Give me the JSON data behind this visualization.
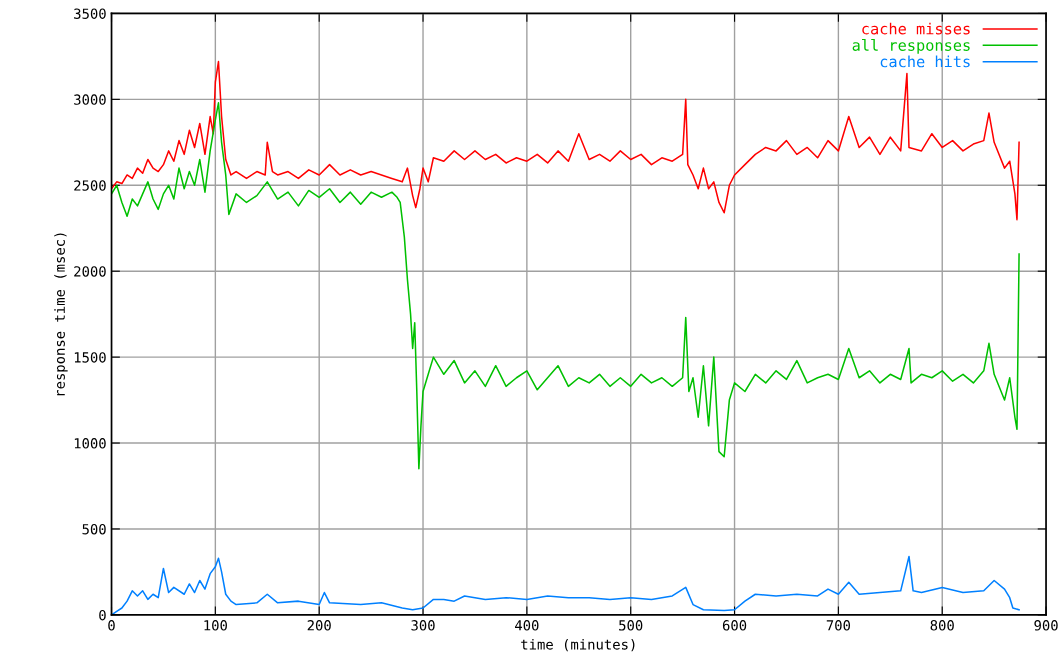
{
  "chart_data": {
    "type": "line",
    "xlabel": "time (minutes)",
    "ylabel": "response time (msec)",
    "xlim": [
      0,
      900
    ],
    "xticks": [
      0,
      100,
      200,
      300,
      400,
      500,
      600,
      700,
      800,
      900
    ],
    "ylim": [
      0,
      3500
    ],
    "yticks": [
      0,
      500,
      1000,
      1500,
      2000,
      2500,
      3000,
      3500
    ],
    "grid": true,
    "legend": "top right",
    "line_style": "solid",
    "marker": "none",
    "series": [
      {
        "name": "cache misses",
        "color": "#ff0000",
        "x": [
          0,
          5,
          10,
          15,
          20,
          25,
          30,
          35,
          40,
          45,
          50,
          55,
          60,
          65,
          70,
          75,
          80,
          85,
          90,
          95,
          98,
          100,
          103,
          106,
          110,
          115,
          120,
          130,
          140,
          148,
          150,
          155,
          160,
          170,
          180,
          190,
          200,
          210,
          220,
          230,
          240,
          250,
          260,
          270,
          280,
          285,
          290,
          293,
          297,
          300,
          305,
          310,
          320,
          330,
          340,
          350,
          360,
          370,
          380,
          390,
          400,
          410,
          420,
          430,
          440,
          450,
          460,
          470,
          480,
          490,
          500,
          510,
          520,
          530,
          540,
          550,
          553,
          555,
          560,
          565,
          570,
          575,
          580,
          585,
          590,
          595,
          600,
          610,
          620,
          630,
          640,
          650,
          660,
          670,
          680,
          690,
          700,
          710,
          720,
          730,
          740,
          750,
          760,
          766,
          768,
          780,
          790,
          800,
          810,
          820,
          830,
          840,
          845,
          850,
          860,
          865,
          870,
          872,
          874
        ],
        "values": [
          2480,
          2520,
          2510,
          2560,
          2540,
          2600,
          2570,
          2650,
          2600,
          2580,
          2620,
          2700,
          2640,
          2760,
          2680,
          2820,
          2720,
          2860,
          2680,
          2900,
          2800,
          3100,
          3220,
          2900,
          2650,
          2560,
          2580,
          2540,
          2580,
          2560,
          2750,
          2580,
          2560,
          2580,
          2540,
          2590,
          2560,
          2620,
          2560,
          2590,
          2560,
          2580,
          2560,
          2540,
          2520,
          2600,
          2440,
          2370,
          2480,
          2600,
          2520,
          2660,
          2640,
          2700,
          2650,
          2700,
          2650,
          2680,
          2630,
          2660,
          2640,
          2680,
          2630,
          2700,
          2640,
          2800,
          2650,
          2680,
          2640,
          2700,
          2650,
          2680,
          2620,
          2660,
          2640,
          2680,
          3000,
          2620,
          2560,
          2480,
          2600,
          2480,
          2520,
          2400,
          2340,
          2500,
          2560,
          2620,
          2680,
          2720,
          2700,
          2760,
          2680,
          2720,
          2660,
          2760,
          2700,
          2900,
          2720,
          2780,
          2680,
          2780,
          2700,
          3150,
          2720,
          2700,
          2800,
          2720,
          2760,
          2700,
          2740,
          2760,
          2920,
          2750,
          2600,
          2640,
          2450,
          2300,
          2750
        ]
      },
      {
        "name": "all responses",
        "color": "#00c000",
        "x": [
          0,
          5,
          10,
          15,
          20,
          25,
          30,
          35,
          40,
          45,
          50,
          55,
          60,
          65,
          70,
          75,
          80,
          85,
          90,
          95,
          100,
          103,
          106,
          110,
          113,
          120,
          130,
          140,
          150,
          160,
          170,
          180,
          190,
          200,
          210,
          220,
          230,
          240,
          250,
          260,
          270,
          275,
          278,
          282,
          285,
          288,
          290,
          292,
          294,
          296,
          298,
          300,
          305,
          310,
          320,
          330,
          340,
          350,
          360,
          370,
          380,
          390,
          400,
          410,
          420,
          430,
          440,
          450,
          460,
          470,
          480,
          490,
          500,
          510,
          520,
          530,
          540,
          550,
          553,
          556,
          560,
          565,
          570,
          575,
          580,
          585,
          590,
          595,
          600,
          610,
          620,
          630,
          640,
          650,
          660,
          670,
          680,
          690,
          700,
          710,
          720,
          730,
          740,
          750,
          760,
          768,
          770,
          780,
          790,
          800,
          810,
          820,
          830,
          840,
          845,
          850,
          860,
          865,
          870,
          872,
          874
        ],
        "values": [
          2450,
          2500,
          2400,
          2320,
          2420,
          2380,
          2450,
          2520,
          2420,
          2360,
          2450,
          2500,
          2420,
          2600,
          2480,
          2580,
          2500,
          2650,
          2460,
          2700,
          2880,
          2980,
          2750,
          2560,
          2330,
          2450,
          2400,
          2440,
          2520,
          2420,
          2460,
          2380,
          2470,
          2430,
          2480,
          2400,
          2460,
          2390,
          2460,
          2430,
          2460,
          2430,
          2400,
          2200,
          1950,
          1750,
          1550,
          1700,
          1300,
          850,
          1100,
          1300,
          1400,
          1500,
          1400,
          1480,
          1350,
          1420,
          1330,
          1450,
          1330,
          1380,
          1420,
          1310,
          1380,
          1450,
          1330,
          1380,
          1350,
          1400,
          1330,
          1380,
          1330,
          1400,
          1350,
          1380,
          1330,
          1380,
          1730,
          1300,
          1380,
          1150,
          1450,
          1100,
          1500,
          950,
          920,
          1250,
          1350,
          1300,
          1400,
          1350,
          1420,
          1370,
          1480,
          1350,
          1380,
          1400,
          1370,
          1550,
          1380,
          1420,
          1350,
          1400,
          1370,
          1550,
          1350,
          1400,
          1380,
          1420,
          1360,
          1400,
          1350,
          1420,
          1580,
          1400,
          1250,
          1380,
          1150,
          1080,
          2100
        ]
      },
      {
        "name": "cache hits",
        "color": "#0080ff",
        "x": [
          0,
          5,
          10,
          15,
          20,
          25,
          30,
          35,
          40,
          45,
          50,
          55,
          60,
          70,
          75,
          80,
          85,
          90,
          95,
          100,
          103,
          106,
          110,
          115,
          120,
          140,
          150,
          160,
          180,
          200,
          205,
          210,
          240,
          260,
          280,
          290,
          300,
          310,
          320,
          330,
          340,
          360,
          380,
          400,
          420,
          440,
          460,
          480,
          500,
          520,
          540,
          553,
          560,
          570,
          590,
          600,
          610,
          620,
          640,
          660,
          680,
          690,
          700,
          710,
          720,
          740,
          760,
          768,
          772,
          780,
          800,
          820,
          840,
          850,
          860,
          865,
          868,
          874
        ],
        "values": [
          0,
          20,
          40,
          80,
          140,
          110,
          140,
          90,
          120,
          100,
          270,
          130,
          160,
          120,
          180,
          130,
          200,
          150,
          240,
          280,
          330,
          250,
          120,
          80,
          60,
          70,
          120,
          70,
          80,
          60,
          130,
          70,
          60,
          70,
          40,
          30,
          40,
          90,
          90,
          80,
          110,
          90,
          100,
          90,
          110,
          100,
          100,
          90,
          100,
          90,
          110,
          160,
          60,
          30,
          25,
          30,
          80,
          120,
          110,
          120,
          110,
          150,
          120,
          190,
          120,
          130,
          140,
          340,
          140,
          130,
          160,
          130,
          140,
          200,
          150,
          100,
          40,
          30
        ]
      }
    ]
  }
}
